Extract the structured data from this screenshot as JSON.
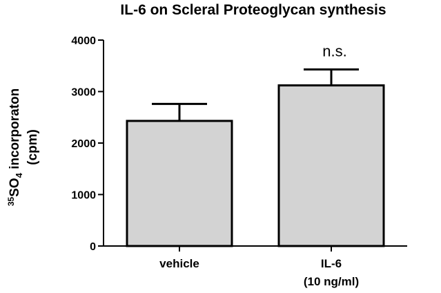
{
  "chart_data": {
    "type": "bar",
    "title": "IL-6 on Scleral  Proteoglycan synthesis",
    "ylabel": {
      "line1_prefix": "35",
      "line1_main": "SO",
      "line1_sub": "4",
      "line1_rest": " incorporaton",
      "line2": "(cpm)"
    },
    "xlabel": "",
    "categories": [
      "vehicle",
      "IL-6"
    ],
    "category_sublabels": [
      "",
      "(10 ng/ml)"
    ],
    "values": [
      2430,
      3120
    ],
    "errors": [
      330,
      310
    ],
    "ylim": [
      0,
      4000
    ],
    "yticks": [
      0,
      1000,
      2000,
      3000,
      4000
    ],
    "ytick_labels": [
      "0",
      "1000",
      "2000",
      "3000",
      "4000"
    ],
    "annotations": [
      {
        "category": "IL-6",
        "text": "n.s."
      }
    ],
    "grid": false,
    "legend": "none",
    "colors": {
      "bar_fill": "#d3d3d3",
      "bar_stroke": "#000000",
      "axis": "#000000"
    }
  }
}
